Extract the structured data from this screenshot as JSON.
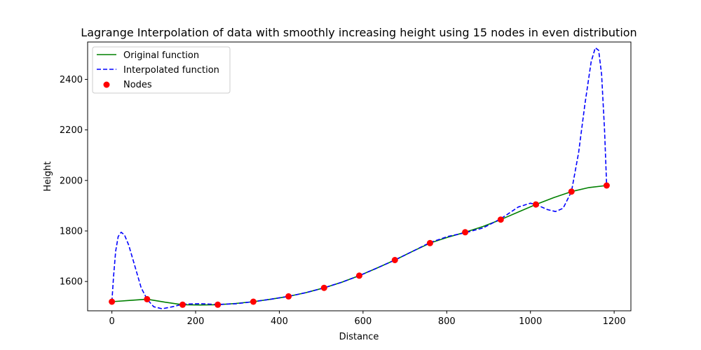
{
  "chart_data": {
    "type": "line",
    "title": "Lagrange Interpolation of data with smoothly increasing height using 15 nodes in even distribution",
    "xlabel": "Distance",
    "ylabel": "Height",
    "xlim": [
      -58,
      1240
    ],
    "ylim": [
      1484,
      2548
    ],
    "xticks": [
      0,
      200,
      400,
      600,
      800,
      1000,
      1200
    ],
    "yticks": [
      1600,
      1800,
      2000,
      2200,
      2400
    ],
    "grid": false,
    "legend_position": "top-left",
    "series": [
      {
        "name": "Original function",
        "style": "solid",
        "color": "#008000",
        "points": [
          [
            0,
            1520
          ],
          [
            42,
            1525
          ],
          [
            84,
            1530
          ],
          [
            127,
            1518
          ],
          [
            169,
            1508
          ],
          [
            211,
            1507
          ],
          [
            253,
            1508
          ],
          [
            296,
            1513
          ],
          [
            338,
            1520
          ],
          [
            380,
            1530
          ],
          [
            422,
            1541
          ],
          [
            464,
            1556
          ],
          [
            507,
            1575
          ],
          [
            549,
            1597
          ],
          [
            591,
            1623
          ],
          [
            633,
            1653
          ],
          [
            676,
            1685
          ],
          [
            718,
            1719
          ],
          [
            760,
            1752
          ],
          [
            802,
            1775
          ],
          [
            844,
            1795
          ],
          [
            887,
            1818
          ],
          [
            929,
            1845
          ],
          [
            971,
            1875
          ],
          [
            1013,
            1905
          ],
          [
            1056,
            1932
          ],
          [
            1098,
            1956
          ],
          [
            1140,
            1972
          ],
          [
            1182,
            1980
          ]
        ]
      },
      {
        "name": "Interpolated function",
        "style": "dashed",
        "color": "#0000ff",
        "points": [
          [
            0,
            1520
          ],
          [
            4,
            1620
          ],
          [
            9,
            1720
          ],
          [
            15,
            1778
          ],
          [
            22,
            1795
          ],
          [
            30,
            1785
          ],
          [
            40,
            1745
          ],
          [
            55,
            1660
          ],
          [
            70,
            1575
          ],
          [
            84,
            1530
          ],
          [
            100,
            1500
          ],
          [
            120,
            1492
          ],
          [
            145,
            1500
          ],
          [
            169,
            1510
          ],
          [
            211,
            1512
          ],
          [
            253,
            1509
          ],
          [
            296,
            1512
          ],
          [
            338,
            1520
          ],
          [
            380,
            1530
          ],
          [
            422,
            1541
          ],
          [
            464,
            1556
          ],
          [
            507,
            1575
          ],
          [
            549,
            1597
          ],
          [
            591,
            1623
          ],
          [
            633,
            1653
          ],
          [
            676,
            1685
          ],
          [
            718,
            1719
          ],
          [
            760,
            1754
          ],
          [
            802,
            1778
          ],
          [
            844,
            1793
          ],
          [
            887,
            1812
          ],
          [
            929,
            1848
          ],
          [
            971,
            1895
          ],
          [
            1000,
            1910
          ],
          [
            1013,
            1905
          ],
          [
            1040,
            1885
          ],
          [
            1060,
            1877
          ],
          [
            1078,
            1890
          ],
          [
            1098,
            1956
          ],
          [
            1115,
            2110
          ],
          [
            1130,
            2300
          ],
          [
            1145,
            2470
          ],
          [
            1155,
            2525
          ],
          [
            1163,
            2515
          ],
          [
            1170,
            2420
          ],
          [
            1177,
            2200
          ],
          [
            1182,
            1980
          ]
        ]
      },
      {
        "name": "Nodes",
        "style": "markers",
        "color": "#ff0000",
        "points": [
          [
            0,
            1520
          ],
          [
            84,
            1530
          ],
          [
            169,
            1508
          ],
          [
            253,
            1508
          ],
          [
            338,
            1520
          ],
          [
            422,
            1541
          ],
          [
            507,
            1575
          ],
          [
            591,
            1623
          ],
          [
            676,
            1685
          ],
          [
            760,
            1752
          ],
          [
            844,
            1795
          ],
          [
            929,
            1845
          ],
          [
            1013,
            1905
          ],
          [
            1098,
            1956
          ],
          [
            1182,
            1980
          ]
        ]
      }
    ]
  }
}
